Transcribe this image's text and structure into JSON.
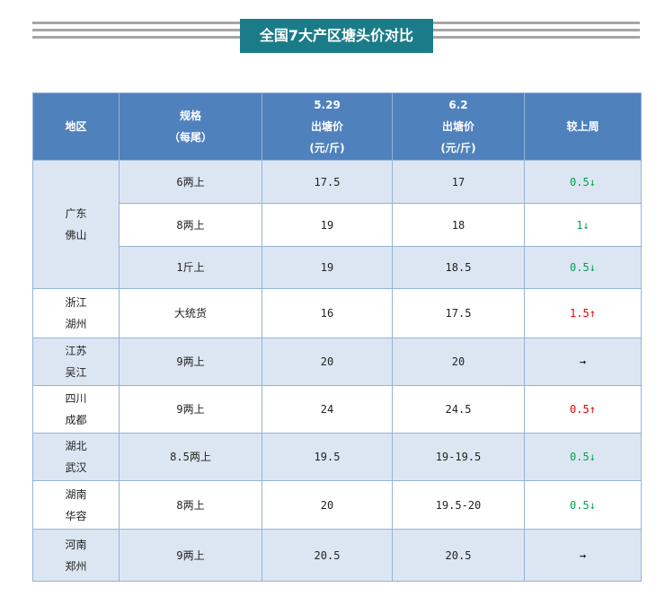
{
  "title": "全国7大产区塘头价对比",
  "table": {
    "header": [
      [
        "地区"
      ],
      [
        "规格",
        "（每尾）"
      ],
      [
        "5.29",
        "出塘价",
        "(元/斤)"
      ],
      [
        "6.2",
        "出塘价",
        "(元/斤)"
      ],
      [
        "较上周"
      ]
    ],
    "groups": [
      {
        "region": [
          "广东",
          "佛山"
        ],
        "rows": [
          {
            "spec": "6两上",
            "prices": [
              17.5,
              17
            ],
            "change": "0.5↓",
            "color": "#00a050"
          },
          {
            "spec": "8两上",
            "prices": [
              19,
              18
            ],
            "change": "1↓",
            "color": "#00a050"
          },
          {
            "spec": "1斤上",
            "prices": [
              19,
              18.5
            ],
            "change": "0.5↓",
            "color": "#00a050"
          }
        ]
      },
      {
        "region": [
          "浙江",
          "湖州"
        ],
        "rows": [
          {
            "spec": "大统货",
            "prices": [
              16,
              17.5
            ],
            "change": "1.5↑",
            "color": "#e00000"
          }
        ]
      },
      {
        "region": [
          "江苏",
          "吴江"
        ],
        "rows": [
          {
            "spec": "9两上",
            "prices": [
              20,
              20
            ],
            "change": "→",
            "color": "#000000"
          }
        ]
      },
      {
        "region": [
          "四川",
          "成都"
        ],
        "rows": [
          {
            "spec": "9两上",
            "prices": [
              24,
              24.5
            ],
            "change": "0.5↑",
            "color": "#e00000"
          }
        ]
      },
      {
        "region": [
          "湖北",
          "武汉"
        ],
        "rows": [
          {
            "spec": "8.5两上",
            "prices": [
              19.5,
              "19-19.5"
            ],
            "change": "0.5↓",
            "color": "#00a050"
          }
        ]
      },
      {
        "region": [
          "湖南",
          "华容"
        ],
        "rows": [
          {
            "spec": "8两上",
            "prices": [
              20,
              "19.5-20"
            ],
            "change": "0.5↓",
            "color": "#00a050"
          }
        ]
      },
      {
        "region": [
          "河南",
          "郑州"
        ],
        "rows": [
          {
            "spec": "9两上",
            "prices": [
              20.5,
              20.5
            ],
            "change": "→",
            "color": "#000000"
          }
        ]
      }
    ]
  }
}
